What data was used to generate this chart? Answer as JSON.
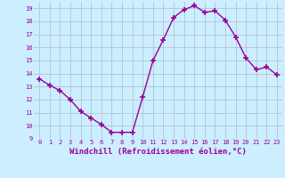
{
  "x": [
    0,
    1,
    2,
    3,
    4,
    5,
    6,
    7,
    8,
    9,
    10,
    11,
    12,
    13,
    14,
    15,
    16,
    17,
    18,
    19,
    20,
    21,
    22,
    23
  ],
  "y": [
    13.6,
    13.1,
    12.7,
    12.0,
    11.1,
    10.6,
    10.1,
    9.5,
    9.5,
    9.5,
    12.2,
    15.0,
    16.6,
    18.3,
    18.9,
    19.2,
    18.7,
    18.8,
    18.1,
    16.8,
    15.2,
    14.3,
    14.5,
    13.9
  ],
  "line_color": "#990099",
  "marker": "+",
  "marker_size": 4,
  "background_color": "#cceeff",
  "grid_color": "#aabbcc",
  "xlabel": "Windchill (Refroidissement éolien,°C)",
  "xlabel_color": "#990099",
  "xlim": [
    -0.5,
    23.5
  ],
  "ylim": [
    9,
    19.5
  ],
  "yticks": [
    9,
    10,
    11,
    12,
    13,
    14,
    15,
    16,
    17,
    18,
    19
  ],
  "xticks": [
    0,
    1,
    2,
    3,
    4,
    5,
    6,
    7,
    8,
    9,
    10,
    11,
    12,
    13,
    14,
    15,
    16,
    17,
    18,
    19,
    20,
    21,
    22,
    23
  ],
  "tick_color": "#990099",
  "tick_label_fontsize": 5.0,
  "xlabel_fontsize": 6.5,
  "line_width": 1.0,
  "marker_color": "#990099"
}
